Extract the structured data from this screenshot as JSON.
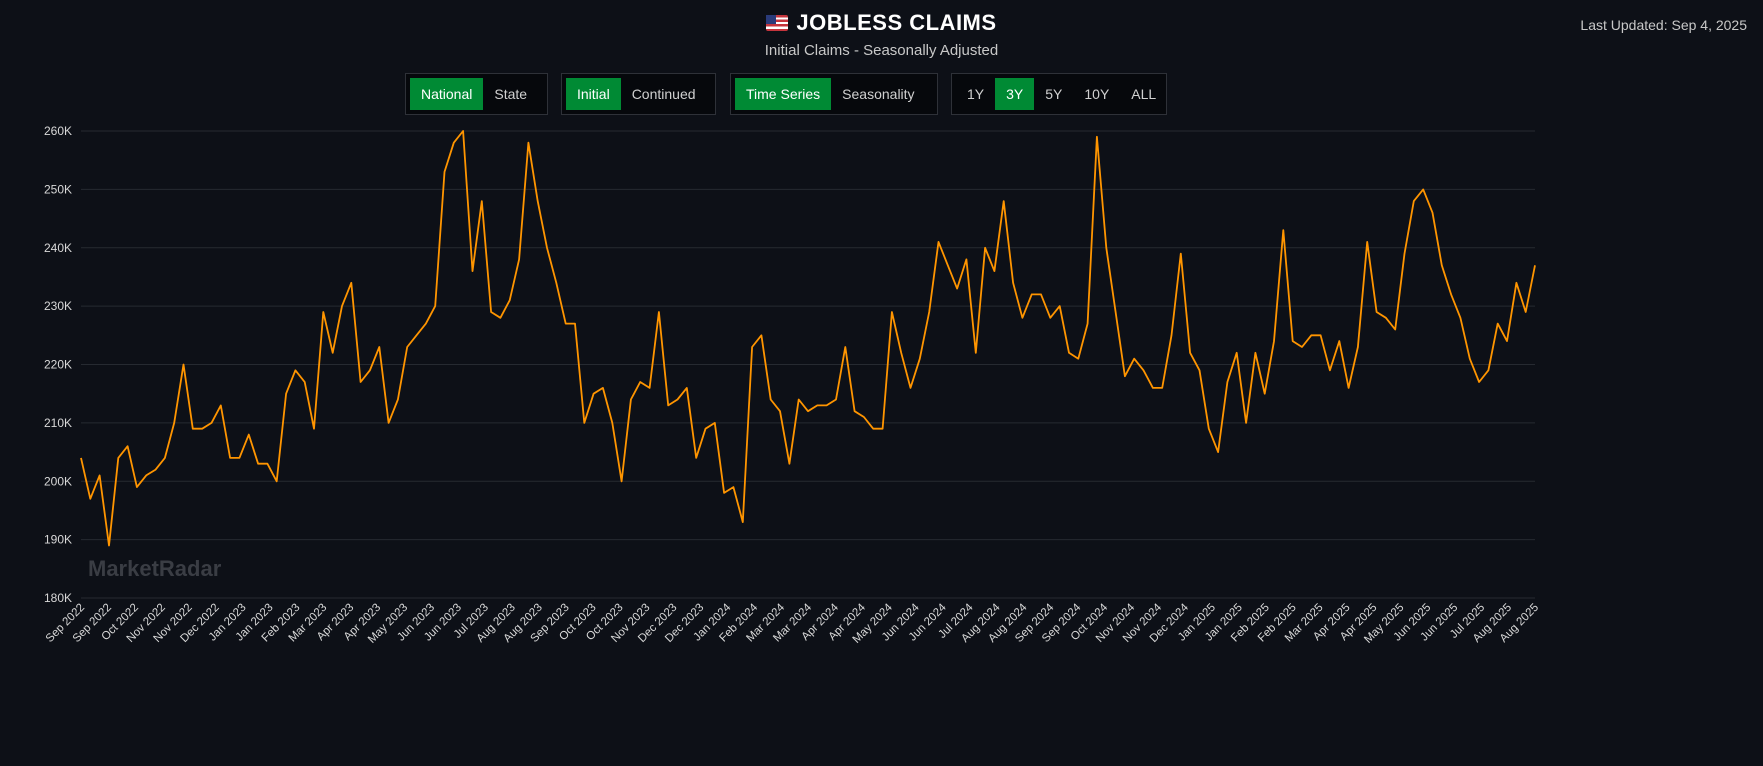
{
  "header": {
    "flag_icon": "us-flag-icon",
    "title": "JOBLESS CLAIMS",
    "subtitle": "Initial Claims - Seasonally Adjusted",
    "last_updated": "Last Updated: Sep 4, 2025"
  },
  "controls": {
    "region": [
      {
        "label": "National",
        "active": true
      },
      {
        "label": "State",
        "active": false
      }
    ],
    "claim_type": [
      {
        "label": "Initial",
        "active": true
      },
      {
        "label": "Continued",
        "active": false
      }
    ],
    "view": [
      {
        "label": "Time Series",
        "active": true
      },
      {
        "label": "Seasonality",
        "active": false
      }
    ],
    "range": [
      {
        "label": "1Y",
        "active": false
      },
      {
        "label": "3Y",
        "active": true
      },
      {
        "label": "5Y",
        "active": false
      },
      {
        "label": "10Y",
        "active": false
      },
      {
        "label": "ALL",
        "active": false
      }
    ]
  },
  "watermark": "MarketRadar",
  "colors": {
    "line": "#ff9500",
    "active_button": "#008a34",
    "background": "#0d1017"
  },
  "chart_data": {
    "type": "line",
    "title": "",
    "xlabel": "",
    "ylabel": "",
    "ylim": [
      180000,
      260000
    ],
    "y_ticks": [
      "180K",
      "190K",
      "200K",
      "210K",
      "220K",
      "230K",
      "240K",
      "250K",
      "260K"
    ],
    "grid": true,
    "x_tick_labels": [
      "Sep 2022",
      "Sep 2022",
      "Oct 2022",
      "Nov 2022",
      "Nov 2022",
      "Dec 2022",
      "Jan 2023",
      "Jan 2023",
      "Feb 2023",
      "Mar 2023",
      "Apr 2023",
      "Apr 2023",
      "May 2023",
      "Jun 2023",
      "Jun 2023",
      "Jul 2023",
      "Aug 2023",
      "Aug 2023",
      "Sep 2023",
      "Oct 2023",
      "Oct 2023",
      "Nov 2023",
      "Dec 2023",
      "Dec 2023",
      "Jan 2024",
      "Feb 2024",
      "Mar 2024",
      "Mar 2024",
      "Apr 2024",
      "Apr 2024",
      "May 2024",
      "Jun 2024",
      "Jun 2024",
      "Jul 2024",
      "Aug 2024",
      "Aug 2024",
      "Sep 2024",
      "Sep 2024",
      "Oct 2024",
      "Nov 2024",
      "Nov 2024",
      "Dec 2024",
      "Jan 2025",
      "Jan 2025",
      "Feb 2025",
      "Feb 2025",
      "Mar 2025",
      "Apr 2025",
      "Apr 2025",
      "May 2025",
      "Jun 2025",
      "Jun 2025",
      "Jul 2025",
      "Aug 2025",
      "Aug 2025"
    ],
    "series": [
      {
        "values": [
          204000,
          197000,
          201000,
          189000,
          204000,
          206000,
          199000,
          201000,
          202000,
          204000,
          210000,
          220000,
          209000,
          209000,
          210000,
          213000,
          204000,
          204000,
          208000,
          203000,
          203000,
          200000,
          215000,
          219000,
          217000,
          209000,
          229000,
          222000,
          230000,
          234000,
          217000,
          219000,
          223000,
          210000,
          214000,
          223000,
          225000,
          227000,
          230000,
          253000,
          258000,
          260000,
          236000,
          248000,
          229000,
          228000,
          231000,
          238000,
          258000,
          248000,
          240000,
          234000,
          227000,
          227000,
          210000,
          215000,
          216000,
          210000,
          200000,
          214000,
          217000,
          216000,
          229000,
          213000,
          214000,
          216000,
          204000,
          209000,
          210000,
          198000,
          199000,
          193000,
          223000,
          225000,
          214000,
          212000,
          203000,
          214000,
          212000,
          213000,
          213000,
          214000,
          223000,
          212000,
          211000,
          209000,
          209000,
          229000,
          222000,
          216000,
          221000,
          229000,
          241000,
          237000,
          233000,
          238000,
          222000,
          240000,
          236000,
          248000,
          234000,
          228000,
          232000,
          232000,
          228000,
          230000,
          222000,
          221000,
          227000,
          259000,
          240000,
          229000,
          218000,
          221000,
          219000,
          216000,
          216000,
          225000,
          239000,
          222000,
          219000,
          209000,
          205000,
          217000,
          222000,
          210000,
          222000,
          215000,
          224000,
          243000,
          224000,
          223000,
          225000,
          225000,
          219000,
          224000,
          216000,
          223000,
          241000,
          229000,
          228000,
          226000,
          239000,
          248000,
          250000,
          246000,
          237000,
          232000,
          228000,
          221000,
          217000,
          219000,
          227000,
          224000,
          234000,
          229000,
          237000
        ]
      }
    ]
  }
}
